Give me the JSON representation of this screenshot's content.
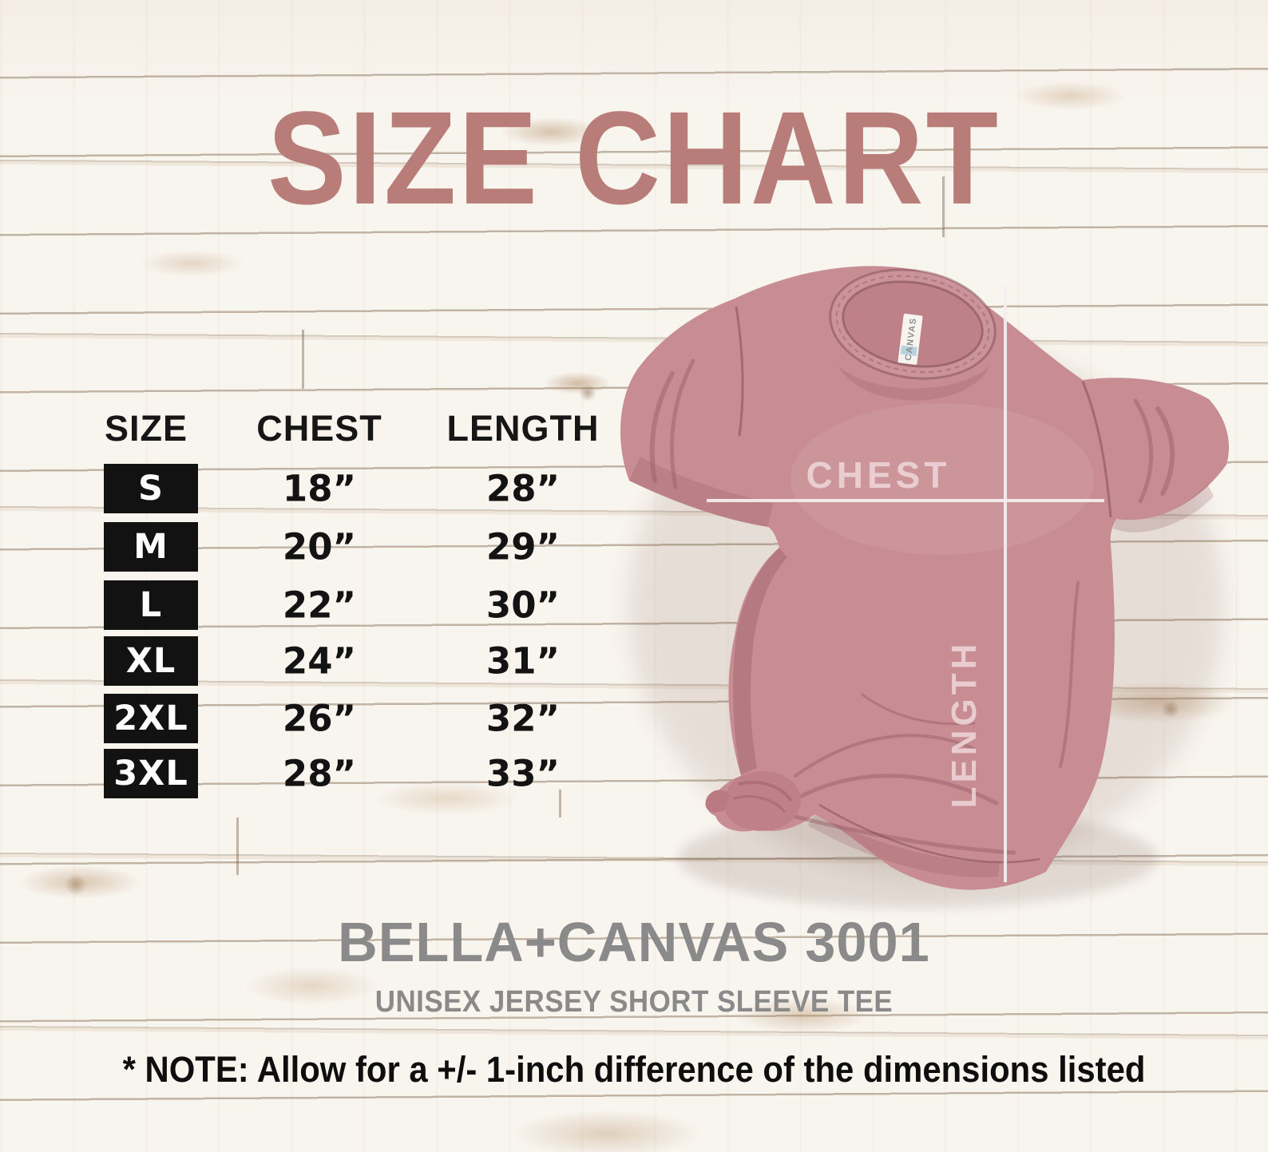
{
  "title": "SIZE CHART",
  "table": {
    "headers": [
      "SIZE",
      "CHEST",
      "LENGTH"
    ],
    "rows": [
      {
        "size": "S",
        "chest": "18”",
        "length": "28”"
      },
      {
        "size": "M",
        "chest": "20”",
        "length": "29”"
      },
      {
        "size": "L",
        "chest": "22”",
        "length": "30”"
      },
      {
        "size": "XL",
        "chest": "24”",
        "length": "31”"
      },
      {
        "size": "2XL",
        "chest": "26”",
        "length": "32”"
      },
      {
        "size": "3XL",
        "chest": "28”",
        "length": "33”"
      }
    ]
  },
  "shirt": {
    "chest_label": "CHEST",
    "length_label": "LENGTH",
    "neck_label": "CANVAS",
    "color": "#c78d92"
  },
  "product": {
    "name": "BELLA+CANVAS 3001",
    "subtitle": "UNISEX JERSEY SHORT SLEEVE TEE"
  },
  "note": "* NOTE: Allow for a +/- 1-inch difference of the dimensions listed",
  "colors": {
    "title_text": "#b97d79",
    "product_text": "#8a8a8a",
    "table_text": "#121212",
    "measure_line": "#f5edee"
  },
  "chart_data": {
    "type": "table",
    "title": "SIZE CHART",
    "columns": [
      "SIZE",
      "CHEST",
      "LENGTH"
    ],
    "rows": [
      [
        "S",
        "18\"",
        "28\""
      ],
      [
        "M",
        "20\"",
        "29\""
      ],
      [
        "L",
        "22\"",
        "30\""
      ],
      [
        "XL",
        "24\"",
        "31\""
      ],
      [
        "2XL",
        "26\"",
        "32\""
      ],
      [
        "3XL",
        "28\"",
        "33\""
      ]
    ],
    "units": "inches",
    "product": "BELLA+CANVAS 3001 UNISEX JERSEY SHORT SLEEVE TEE",
    "note": "Allow for a +/- 1-inch difference of the dimensions listed"
  }
}
